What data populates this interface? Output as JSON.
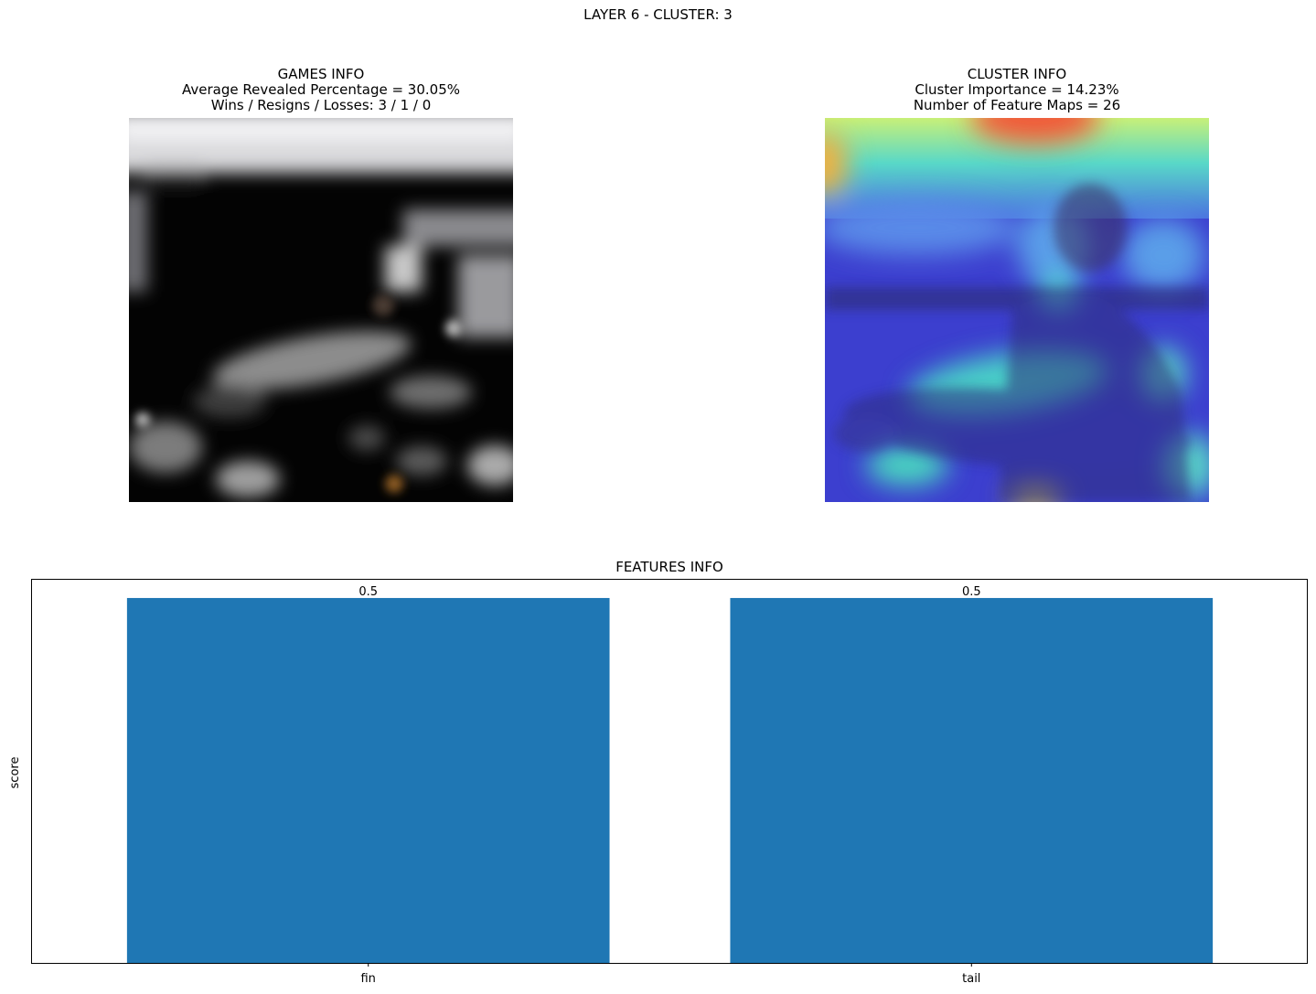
{
  "figure": {
    "suptitle": "LAYER 6 - CLUSTER: 3"
  },
  "games_panel": {
    "title_lines": [
      "GAMES INFO",
      "Average Revealed Percentage = 30.05%",
      "Wins / Resigns / Losses: 3 / 1 / 0"
    ],
    "image": "masked-photo-person-holding-fish"
  },
  "cluster_panel": {
    "title_lines": [
      "CLUSTER INFO",
      "Cluster Importance = 14.23%",
      "Number of Feature Maps = 26"
    ],
    "image": "heatmap-overlay-person-holding-fish"
  },
  "chart_data": {
    "type": "bar",
    "title": "FEATURES INFO",
    "categories": [
      "fin",
      "tail"
    ],
    "values": [
      0.5,
      0.5
    ],
    "data_labels": [
      "0.5",
      "0.5"
    ],
    "xlabel": "",
    "ylabel": "score",
    "ylim": [
      0,
      0.525
    ],
    "yticks_visible": false,
    "grid": false,
    "bar_color": "#1f77b4"
  }
}
